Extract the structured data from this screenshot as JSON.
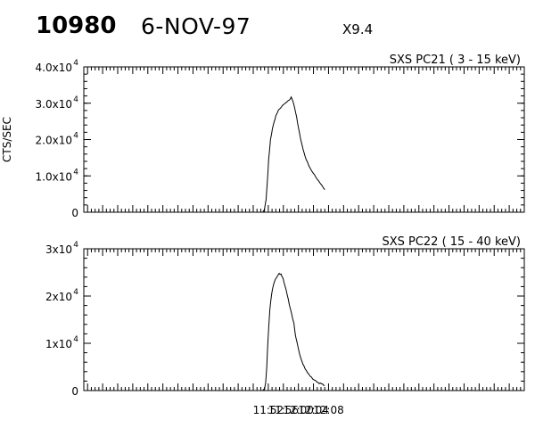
{
  "header": {
    "event_id": "10980",
    "date": "6-NOV-97",
    "flare_class": "X9.4"
  },
  "chart_data": [
    {
      "type": "line",
      "title": "SXS PC21  (  3 - 15 keV)",
      "ylabel": "CTS/SEC",
      "xlim_minutes": [
        -57,
        60
      ],
      "ylim": [
        0,
        40000
      ],
      "yticks": [
        {
          "value": 0,
          "mantissa": "0",
          "exp": ""
        },
        {
          "value": 10000,
          "mantissa": "1.0x10",
          "exp": "4"
        },
        {
          "value": 20000,
          "mantissa": "2.0x10",
          "exp": "4"
        },
        {
          "value": 30000,
          "mantissa": "3.0x10",
          "exp": "4"
        },
        {
          "value": 40000,
          "mantissa": "4.0x10",
          "exp": "4"
        }
      ],
      "series": [
        {
          "x": [
            "11:50:30",
            "11:50:54",
            "11:51:06",
            "11:51:24",
            "11:51:42",
            "11:52:06",
            "11:52:36",
            "11:53:06",
            "11:53:36",
            "11:54:00",
            "11:54:36",
            "11:55:12",
            "11:55:48",
            "11:56:24",
            "11:57:00",
            "11:57:36",
            "11:58:06",
            "11:58:30",
            "11:59:00",
            "11:59:30",
            "12:00:00",
            "12:00:36",
            "12:01:12",
            "12:01:48",
            "12:02:24",
            "12:03:06",
            "12:03:48",
            "12:04:36",
            "12:05:24",
            "12:06:18",
            "12:07:00"
          ],
          "y": [
            0,
            600,
            1500,
            3500,
            7500,
            14500,
            20000,
            23000,
            25000,
            26500,
            27800,
            28700,
            29300,
            29900,
            30300,
            30900,
            31600,
            30800,
            28800,
            26200,
            23200,
            20200,
            17500,
            15300,
            13700,
            12200,
            10900,
            9700,
            8600,
            7300,
            6200
          ]
        }
      ]
    },
    {
      "type": "line",
      "title": "SXS PC22  ( 15 - 40 keV)",
      "ylabel": "",
      "xlim_minutes": [
        -57,
        60
      ],
      "ylim": [
        0,
        30000
      ],
      "yticks": [
        {
          "value": 0,
          "mantissa": "0",
          "exp": ""
        },
        {
          "value": 10000,
          "mantissa": "1x10",
          "exp": "4"
        },
        {
          "value": 20000,
          "mantissa": "2x10",
          "exp": "4"
        },
        {
          "value": 30000,
          "mantissa": "3x10",
          "exp": "4"
        }
      ],
      "series": [
        {
          "x": [
            "11:50:30",
            "11:51:00",
            "11:51:18",
            "11:51:36",
            "11:51:54",
            "11:52:24",
            "11:52:54",
            "11:53:24",
            "11:53:54",
            "11:54:24",
            "11:54:54",
            "11:55:24",
            "11:55:54",
            "11:56:24",
            "11:57:00",
            "11:57:36",
            "11:58:12",
            "11:58:48",
            "11:59:12",
            "11:59:36",
            "12:00:06",
            "12:00:36",
            "12:01:12",
            "12:01:48",
            "12:02:24",
            "12:03:06",
            "12:03:48",
            "12:04:36",
            "12:05:30",
            "12:06:24",
            "12:07:00"
          ],
          "y": [
            0,
            400,
            1600,
            5000,
            10500,
            17000,
            20500,
            22500,
            23600,
            24200,
            24700,
            24600,
            23800,
            22300,
            20400,
            18200,
            16200,
            14200,
            11600,
            10200,
            8500,
            7000,
            5700,
            4600,
            3800,
            3100,
            2500,
            2000,
            1600,
            1300,
            1100
          ]
        }
      ]
    }
  ],
  "x_axis": {
    "tick_labels": [
      "11:52",
      "11:56",
      "12:00",
      "12:04",
      "12:08"
    ]
  }
}
